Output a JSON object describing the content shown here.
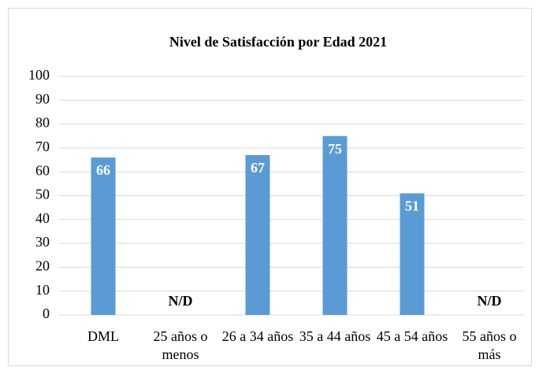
{
  "chart_data": {
    "type": "bar",
    "title": "Nivel de Satisfacción por Edad 2021",
    "categories": [
      "DML",
      "25 años o menos",
      "26 a 34 años",
      "35 a 44 años",
      "45 a 54 años",
      "55 años o más"
    ],
    "values": [
      66,
      null,
      67,
      75,
      51,
      null
    ],
    "value_labels": [
      "66",
      "N/D",
      "67",
      "75",
      "51",
      "N/D"
    ],
    "color": "#5b9bd5",
    "ylim": [
      0,
      100
    ],
    "yticks": [
      0,
      10,
      20,
      30,
      40,
      50,
      60,
      70,
      80,
      90,
      100
    ],
    "grid": true
  }
}
